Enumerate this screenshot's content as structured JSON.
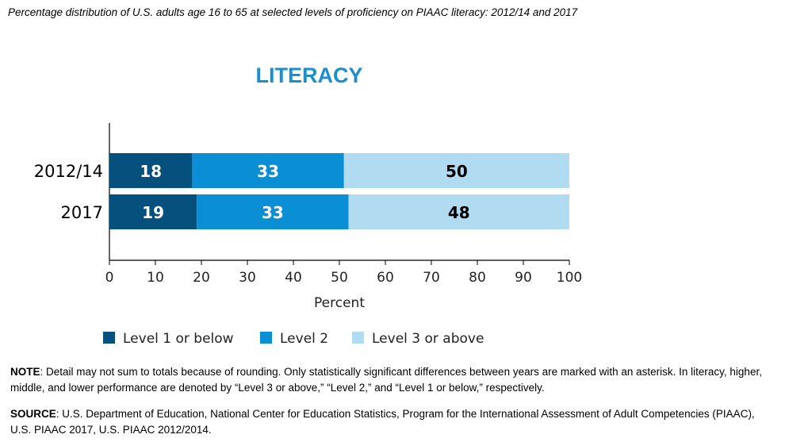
{
  "caption": "Percentage distribution of U.S. adults age 16 to 65 at selected levels of proficiency on PIAAC literacy: 2012/14 and 2017",
  "chart_data": {
    "type": "bar",
    "orientation": "horizontal",
    "stacked": true,
    "title": "LITERACY",
    "xlabel": "Percent",
    "ylabel": "",
    "xlim": [
      0,
      100
    ],
    "xticks": [
      0,
      10,
      20,
      30,
      40,
      50,
      60,
      70,
      80,
      90,
      100
    ],
    "categories": [
      "2012/14",
      "2017"
    ],
    "series": [
      {
        "name": "Level 1 or below",
        "values": [
          18,
          19
        ],
        "color": "#06507e"
      },
      {
        "name": "Level 2",
        "values": [
          33,
          33
        ],
        "color": "#0a8fd4"
      },
      {
        "name": "Level 3 or above",
        "values": [
          50,
          48
        ],
        "color": "#b0dbf1"
      }
    ],
    "label_colors": [
      "#ffffff",
      "#ffffff",
      "#000000"
    ],
    "legend_position": "bottom",
    "grid": false
  },
  "note": {
    "label": "NOTE",
    "text": ": Detail may not sum to totals because of rounding. Only statistically significant differences between years are marked with an asterisk. In literacy, higher, middle, and lower performance are denoted by “Level 3 or above,” “Level 2,” and “Level 1 or below,” respectively."
  },
  "source": {
    "label": "SOURCE",
    "text": ": U.S. Department of Education, National Center for Education Statistics, Program for the International Assessment of Adult Competencies (PIAAC), U.S. PIAAC 2017, U.S. PIAAC 2012/2014."
  }
}
